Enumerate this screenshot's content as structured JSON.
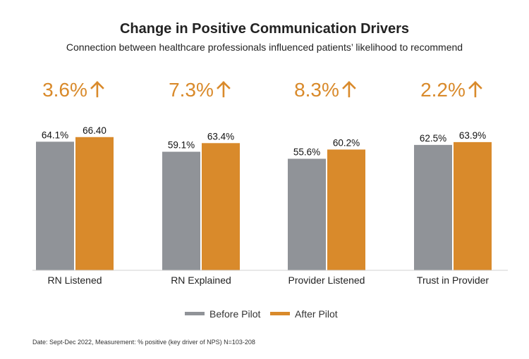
{
  "chart_data": {
    "type": "bar",
    "title": "Change in Positive Communication Drivers",
    "subtitle": "Connection between healthcare professionals influenced patients’ likelihood to recommend",
    "categories": [
      "RN Listened",
      "RN Explained",
      "Provider Listened",
      "Trust in Provider"
    ],
    "series": [
      {
        "name": "Before Pilot",
        "color": "#909398",
        "values": [
          64.1,
          59.1,
          55.6,
          62.5
        ],
        "labels": [
          "64.1%",
          "59.1%",
          "55.6%",
          "62.5%"
        ]
      },
      {
        "name": "After Pilot",
        "color": "#d98a2b",
        "values": [
          66.4,
          63.4,
          60.2,
          63.9
        ],
        "labels": [
          "66.40",
          "63.4%",
          "60.2%",
          "63.9%"
        ]
      }
    ],
    "deltas": [
      "3.6%",
      "7.3%",
      "8.3%",
      "2.2%"
    ],
    "delta_icon": "arrow-up-icon",
    "delta_color": "#d98a2b",
    "ylim": [
      0,
      100
    ],
    "grid": false,
    "legend_position": "bottom-center",
    "footnote": "Date: Sept-Dec 2022, Measurement: % positive (key driver of NPS) N=103-208"
  }
}
